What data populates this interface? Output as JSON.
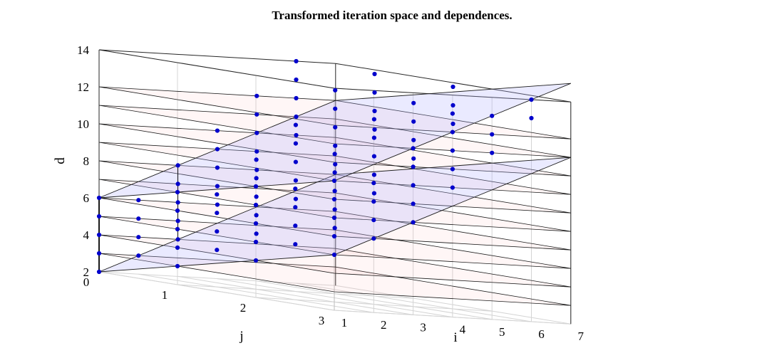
{
  "chart_data": {
    "type": "scatter3d",
    "title": "Transformed iteration space and dependences.",
    "xlabel": "i",
    "ylabel": "j",
    "zlabel": "d",
    "xlim": [
      1,
      7
    ],
    "ylim": [
      0,
      3
    ],
    "zlim": [
      2,
      14
    ],
    "xticks": [
      "1",
      "2",
      "3",
      "4",
      "5",
      "6",
      "7"
    ],
    "yticks": [
      "0",
      "1",
      "2",
      "3"
    ],
    "zticks": [
      "2",
      "4",
      "6",
      "8",
      "10",
      "12",
      "14"
    ],
    "planes": {
      "horizontal_d_levels": [
        3,
        4,
        5,
        6,
        7,
        8,
        9,
        10,
        11,
        12
      ],
      "horizontal_color": "#ffb3b3",
      "slanted_color": "#b3b3ff"
    },
    "point_color": "#0000cc",
    "points_description_note": "",
    "series": [
      {
        "points": [
          {
            "i": 1,
            "j": 0,
            "d": 2
          },
          {
            "i": 1,
            "j": 0,
            "d": 3
          },
          {
            "i": 1,
            "j": 0,
            "d": 4
          },
          {
            "i": 1,
            "j": 0,
            "d": 5
          },
          {
            "i": 1,
            "j": 0,
            "d": 6
          },
          {
            "i": 1,
            "j": 1,
            "d": 3
          },
          {
            "i": 1,
            "j": 1,
            "d": 4
          },
          {
            "i": 1,
            "j": 1,
            "d": 5
          },
          {
            "i": 1,
            "j": 1,
            "d": 6
          },
          {
            "i": 1,
            "j": 1,
            "d": 7
          },
          {
            "i": 1,
            "j": 2,
            "d": 4
          },
          {
            "i": 1,
            "j": 2,
            "d": 5
          },
          {
            "i": 1,
            "j": 2,
            "d": 6
          },
          {
            "i": 1,
            "j": 2,
            "d": 7
          },
          {
            "i": 1,
            "j": 2,
            "d": 8
          },
          {
            "i": 1,
            "j": 3,
            "d": 5
          },
          {
            "i": 1,
            "j": 3,
            "d": 6
          },
          {
            "i": 1,
            "j": 3,
            "d": 7
          },
          {
            "i": 1,
            "j": 3,
            "d": 8
          },
          {
            "i": 1,
            "j": 3,
            "d": 9
          },
          {
            "i": 2,
            "j": 0,
            "d": 3
          },
          {
            "i": 2,
            "j": 0,
            "d": 4
          },
          {
            "i": 2,
            "j": 0,
            "d": 5
          },
          {
            "i": 2,
            "j": 0,
            "d": 6
          },
          {
            "i": 2,
            "j": 1,
            "d": 4
          },
          {
            "i": 2,
            "j": 1,
            "d": 5
          },
          {
            "i": 2,
            "j": 1,
            "d": 6
          },
          {
            "i": 2,
            "j": 1,
            "d": 7
          },
          {
            "i": 2,
            "j": 2,
            "d": 5
          },
          {
            "i": 2,
            "j": 2,
            "d": 6
          },
          {
            "i": 2,
            "j": 2,
            "d": 7
          },
          {
            "i": 2,
            "j": 2,
            "d": 8
          },
          {
            "i": 2,
            "j": 3,
            "d": 6
          },
          {
            "i": 2,
            "j": 3,
            "d": 7
          },
          {
            "i": 2,
            "j": 3,
            "d": 8
          },
          {
            "i": 2,
            "j": 3,
            "d": 9
          },
          {
            "i": 3,
            "j": 0,
            "d": 4
          },
          {
            "i": 3,
            "j": 0,
            "d": 5
          },
          {
            "i": 3,
            "j": 0,
            "d": 6
          },
          {
            "i": 3,
            "j": 0,
            "d": 7
          },
          {
            "i": 3,
            "j": 0,
            "d": 8
          },
          {
            "i": 3,
            "j": 1,
            "d": 5
          },
          {
            "i": 3,
            "j": 1,
            "d": 6
          },
          {
            "i": 3,
            "j": 1,
            "d": 7
          },
          {
            "i": 3,
            "j": 1,
            "d": 8
          },
          {
            "i": 3,
            "j": 1,
            "d": 9
          },
          {
            "i": 3,
            "j": 2,
            "d": 6
          },
          {
            "i": 3,
            "j": 2,
            "d": 7
          },
          {
            "i": 3,
            "j": 2,
            "d": 8
          },
          {
            "i": 3,
            "j": 2,
            "d": 9
          },
          {
            "i": 3,
            "j": 2,
            "d": 10
          },
          {
            "i": 3,
            "j": 3,
            "d": 7
          },
          {
            "i": 3,
            "j": 3,
            "d": 8
          },
          {
            "i": 3,
            "j": 3,
            "d": 9
          },
          {
            "i": 3,
            "j": 3,
            "d": 10
          },
          {
            "i": 3,
            "j": 3,
            "d": 11
          },
          {
            "i": 4,
            "j": 0,
            "d": 6
          },
          {
            "i": 4,
            "j": 0,
            "d": 7
          },
          {
            "i": 4,
            "j": 0,
            "d": 8
          },
          {
            "i": 4,
            "j": 0,
            "d": 9
          },
          {
            "i": 4,
            "j": 0,
            "d": 10
          },
          {
            "i": 4,
            "j": 1,
            "d": 7
          },
          {
            "i": 4,
            "j": 1,
            "d": 8
          },
          {
            "i": 4,
            "j": 1,
            "d": 9
          },
          {
            "i": 4,
            "j": 1,
            "d": 10
          },
          {
            "i": 4,
            "j": 1,
            "d": 11
          },
          {
            "i": 4,
            "j": 2,
            "d": 8
          },
          {
            "i": 4,
            "j": 2,
            "d": 9
          },
          {
            "i": 4,
            "j": 2,
            "d": 10
          },
          {
            "i": 4,
            "j": 2,
            "d": 11
          },
          {
            "i": 4,
            "j": 2,
            "d": 12
          },
          {
            "i": 4,
            "j": 3,
            "d": 9
          },
          {
            "i": 4,
            "j": 3,
            "d": 10
          },
          {
            "i": 4,
            "j": 3,
            "d": 11
          },
          {
            "i": 4,
            "j": 3,
            "d": 12
          },
          {
            "i": 4,
            "j": 3,
            "d": 13
          },
          {
            "i": 5,
            "j": 0,
            "d": 8
          },
          {
            "i": 5,
            "j": 0,
            "d": 9
          },
          {
            "i": 5,
            "j": 0,
            "d": 10
          },
          {
            "i": 5,
            "j": 0,
            "d": 11
          },
          {
            "i": 5,
            "j": 0,
            "d": 12
          },
          {
            "i": 5,
            "j": 1,
            "d": 9
          },
          {
            "i": 5,
            "j": 1,
            "d": 10
          },
          {
            "i": 5,
            "j": 1,
            "d": 11
          },
          {
            "i": 5,
            "j": 1,
            "d": 12
          },
          {
            "i": 5,
            "j": 1,
            "d": 13
          },
          {
            "i": 5,
            "j": 2,
            "d": 10
          },
          {
            "i": 5,
            "j": 2,
            "d": 11
          },
          {
            "i": 5,
            "j": 2,
            "d": 12
          },
          {
            "i": 5,
            "j": 2,
            "d": 13
          },
          {
            "i": 5,
            "j": 3,
            "d": 11
          },
          {
            "i": 5,
            "j": 3,
            "d": 12
          },
          {
            "i": 5,
            "j": 3,
            "d": 13
          },
          {
            "i": 6,
            "j": 0,
            "d": 10
          },
          {
            "i": 6,
            "j": 0,
            "d": 11
          },
          {
            "i": 6,
            "j": 0,
            "d": 12
          },
          {
            "i": 6,
            "j": 0,
            "d": 13
          },
          {
            "i": 6,
            "j": 0,
            "d": 14
          },
          {
            "i": 6,
            "j": 1,
            "d": 11
          },
          {
            "i": 6,
            "j": 1,
            "d": 12
          },
          {
            "i": 6,
            "j": 1,
            "d": 13
          },
          {
            "i": 6,
            "j": 1,
            "d": 14
          },
          {
            "i": 6,
            "j": 2,
            "d": 12
          },
          {
            "i": 6,
            "j": 2,
            "d": 13
          },
          {
            "i": 6,
            "j": 2,
            "d": 14
          },
          {
            "i": 6,
            "j": 3,
            "d": 13
          },
          {
            "i": 6,
            "j": 3,
            "d": 14
          }
        ]
      }
    ]
  }
}
